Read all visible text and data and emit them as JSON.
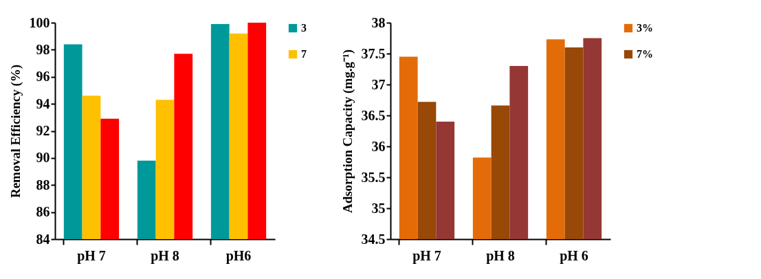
{
  "chart_data": [
    {
      "type": "bar",
      "ylabel": "Removal Efficiency (%)",
      "categories": [
        "pH 7",
        "pH 8",
        "pH6"
      ],
      "ylim": [
        84,
        100
      ],
      "yticks": [
        84,
        86,
        88,
        90,
        92,
        94,
        96,
        98,
        100
      ],
      "legend": "top right",
      "grid": false,
      "series": [
        {
          "name": "3",
          "color": "#009999",
          "values": [
            98.4,
            89.8,
            99.9
          ]
        },
        {
          "name": "7",
          "color": "#ffc000",
          "values": [
            94.6,
            94.3,
            99.2
          ]
        },
        {
          "color": "#ff0000",
          "values": [
            92.9,
            97.7,
            100
          ]
        }
      ]
    },
    {
      "type": "bar",
      "ylabel": "Adsorption Capacity (mg.g⁻¹)",
      "categories": [
        "pH 7",
        "pH 8",
        "pH 6"
      ],
      "ylim": [
        34.5,
        38
      ],
      "yticks": [
        34.5,
        35,
        35.5,
        36,
        36.5,
        37,
        37.5,
        38
      ],
      "legend": "top right",
      "grid": false,
      "series": [
        {
          "name": "3%",
          "color": "#e36c09",
          "values": [
            37.45,
            35.82,
            37.73
          ]
        },
        {
          "name": "7%",
          "color": "#984807",
          "values": [
            36.72,
            36.66,
            37.6
          ]
        },
        {
          "color": "#953735",
          "values": [
            36.4,
            37.3,
            37.75
          ]
        }
      ]
    }
  ]
}
